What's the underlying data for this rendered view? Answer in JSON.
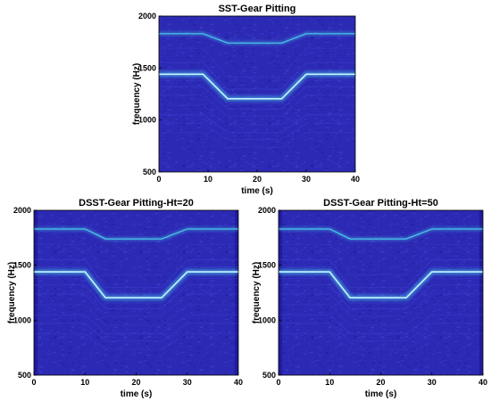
{
  "colors": {
    "background": "#2c2ab4",
    "noise_dark": "#1d1a96",
    "noise_light": "#3c3ed2",
    "ridge": "#49c8e6",
    "ridge_bright": "#c8f2ff",
    "axis": "#000000"
  },
  "chart_data": [
    {
      "type": "heatmap",
      "title": "SST-Gear Pitting",
      "xlabel": "time (s)",
      "ylabel": "frequency (Hz)",
      "xlim": [
        0,
        40
      ],
      "ylim": [
        500,
        2000
      ],
      "xticks": [
        0,
        10,
        20,
        30,
        40
      ],
      "yticks": [
        500,
        1000,
        1500,
        2000
      ],
      "ridges": [
        {
          "name": "upper",
          "x": [
            0,
            9,
            14,
            25,
            30,
            40
          ],
          "y": [
            1830,
            1830,
            1740,
            1740,
            1830,
            1830
          ]
        },
        {
          "name": "main",
          "x": [
            0,
            9,
            14,
            25,
            30,
            40
          ],
          "y": [
            1440,
            1440,
            1205,
            1205,
            1440,
            1440
          ]
        }
      ]
    },
    {
      "type": "heatmap",
      "title": "DSST-Gear Pitting-Ht=20",
      "xlabel": "time (s)",
      "ylabel": "frequency (Hz)",
      "xlim": [
        0,
        40
      ],
      "ylim": [
        500,
        2000
      ],
      "xticks": [
        0,
        10,
        20,
        30,
        40
      ],
      "yticks": [
        500,
        1000,
        1500,
        2000
      ],
      "ridges": [
        {
          "name": "upper",
          "x": [
            0,
            10,
            14,
            25,
            30,
            40
          ],
          "y": [
            1830,
            1830,
            1740,
            1740,
            1830,
            1830
          ]
        },
        {
          "name": "main",
          "x": [
            0,
            10,
            14,
            25,
            30,
            40
          ],
          "y": [
            1440,
            1440,
            1205,
            1205,
            1440,
            1440
          ]
        }
      ]
    },
    {
      "type": "heatmap",
      "title": "DSST-Gear Pitting-Ht=50",
      "xlabel": "time (s)",
      "ylabel": "frequency (Hz)",
      "xlim": [
        0,
        40
      ],
      "ylim": [
        500,
        2000
      ],
      "xticks": [
        0,
        10,
        20,
        30,
        40
      ],
      "yticks": [
        500,
        1000,
        1500,
        2000
      ],
      "ridges": [
        {
          "name": "upper",
          "x": [
            0,
            10,
            14,
            25,
            30,
            40
          ],
          "y": [
            1830,
            1830,
            1740,
            1740,
            1830,
            1830
          ]
        },
        {
          "name": "main",
          "x": [
            0,
            10,
            14,
            25,
            30,
            40
          ],
          "y": [
            1440,
            1440,
            1205,
            1205,
            1440,
            1440
          ]
        }
      ]
    }
  ]
}
